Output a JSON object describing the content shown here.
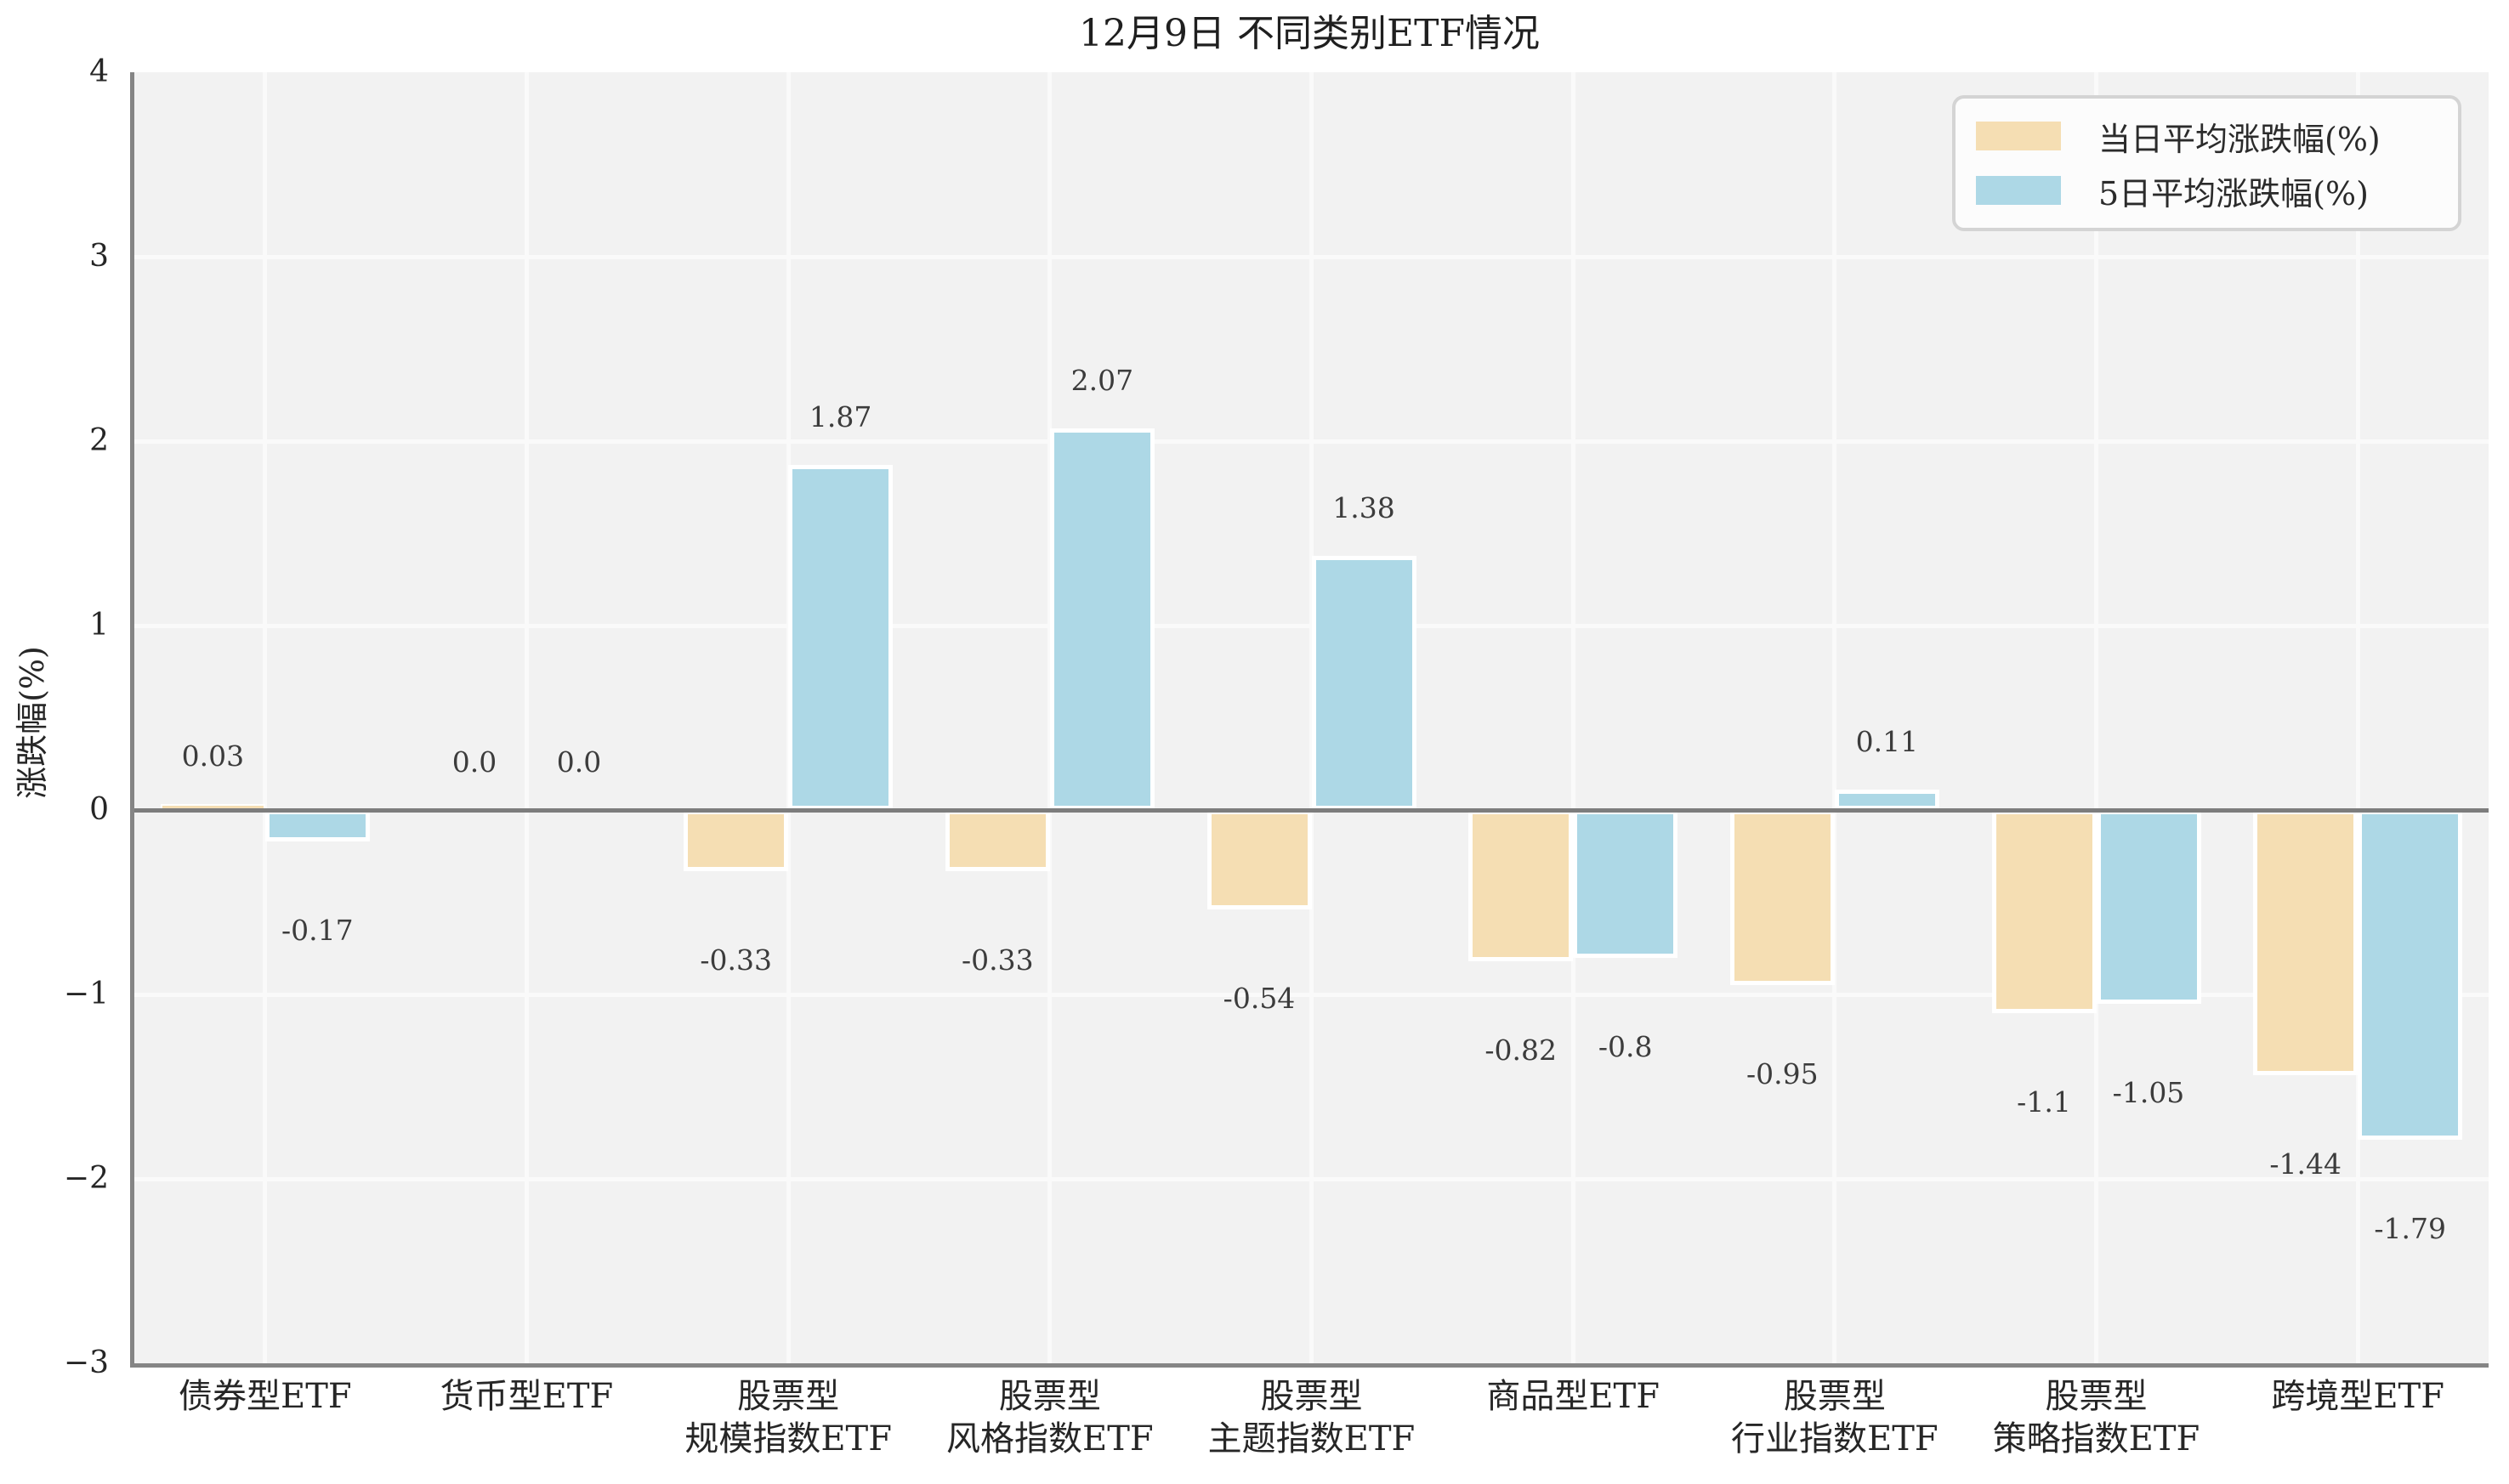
{
  "chart_data": {
    "type": "bar",
    "title": "12月9日 不同类别ETF情况",
    "ylabel": "涨跌幅(%)",
    "xlabel": "",
    "ylim": [
      -3,
      4
    ],
    "yticks": [
      4,
      3,
      2,
      1,
      0,
      -1,
      -2,
      -3
    ],
    "ytick_labels": [
      "4",
      "3",
      "2",
      "1",
      "0",
      "−1",
      "−2",
      "−3"
    ],
    "grid": true,
    "legend_position": "upper right",
    "categories": [
      "债券型ETF",
      "货币型ETF",
      "股票型\n规模指数ETF",
      "股票型\n风格指数ETF",
      "股票型\n主题指数ETF",
      "商品型ETF",
      "股票型\n行业指数ETF",
      "股票型\n策略指数ETF",
      "跨境型ETF"
    ],
    "series": [
      {
        "name": "当日平均涨跌幅(%)",
        "color": "#f5deb3",
        "values": [
          0.03,
          0.0,
          -0.33,
          -0.33,
          -0.54,
          -0.82,
          -0.95,
          -1.1,
          -1.44
        ],
        "labels": [
          "0.03",
          "0.0",
          "-0.33",
          "-0.33",
          "-0.54",
          "-0.82",
          "-0.95",
          "-1.1",
          "-1.44"
        ]
      },
      {
        "name": "5日平均涨跌幅(%)",
        "color": "#add8e6",
        "values": [
          -0.17,
          0.0,
          1.87,
          2.07,
          1.38,
          -0.8,
          0.11,
          -1.05,
          -1.79
        ],
        "labels": [
          "-0.17",
          "0.0",
          "1.87",
          "2.07",
          "1.38",
          "-0.8",
          "0.11",
          "-1.05",
          "-1.79"
        ]
      }
    ],
    "colors": {
      "plot_background": "#f2f2f2",
      "grid": "#fafafa",
      "axis": "#858585",
      "zero_line": "#7d7d7d",
      "text": "#262626"
    }
  }
}
